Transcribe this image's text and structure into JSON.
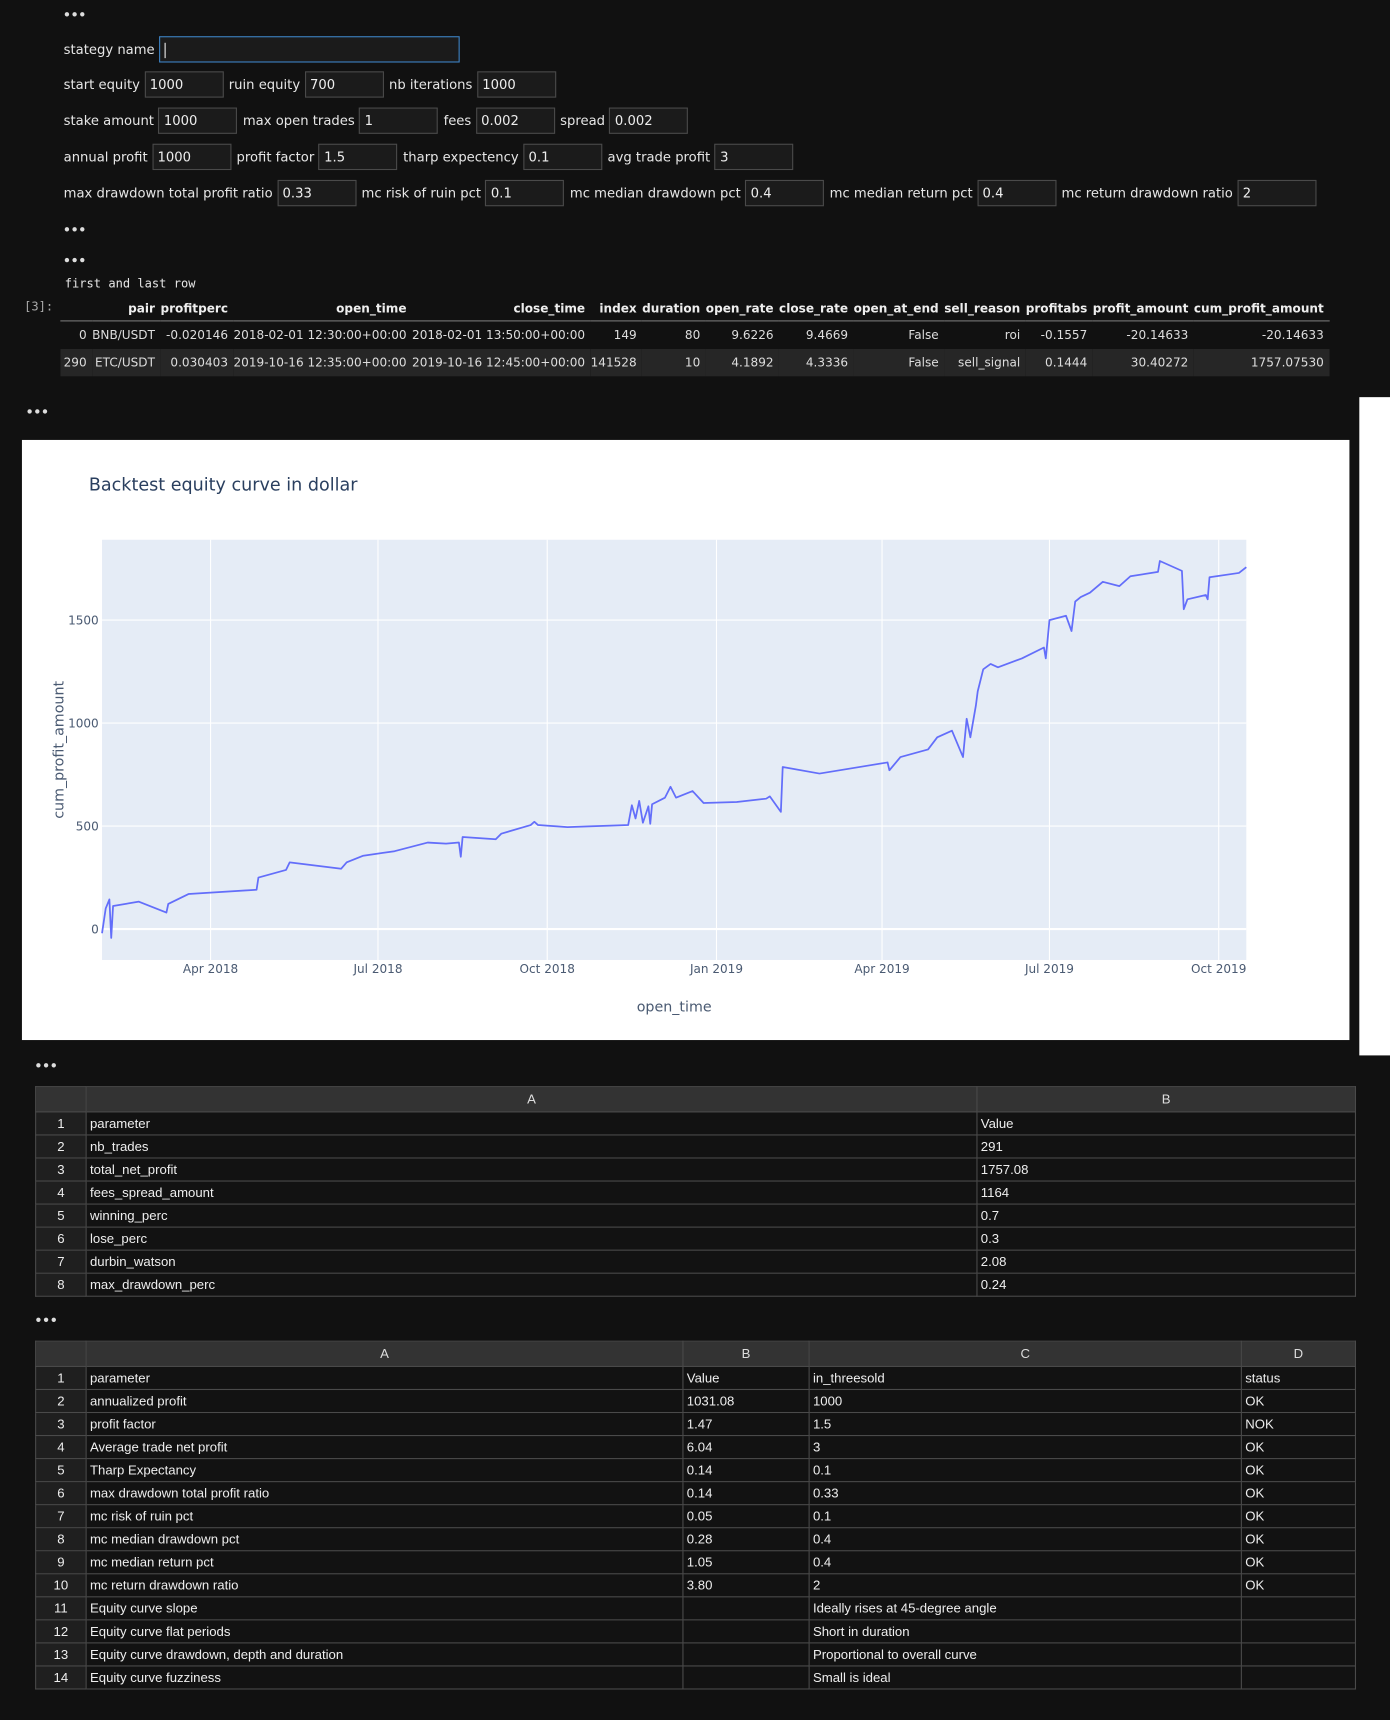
{
  "form": {
    "strategy_label": "stategy name",
    "rows": [
      [
        {
          "label": "start equity",
          "value": "1000"
        },
        {
          "label": "ruin equity",
          "value": "700"
        },
        {
          "label": "nb iterations",
          "value": "1000"
        }
      ],
      [
        {
          "label": "stake amount",
          "value": "1000"
        },
        {
          "label": "max open trades",
          "value": "1"
        },
        {
          "label": "fees",
          "value": "0.002"
        },
        {
          "label": "spread",
          "value": "0.002"
        }
      ],
      [
        {
          "label": "annual profit",
          "value": "1000"
        },
        {
          "label": "profit factor",
          "value": "1.5"
        },
        {
          "label": "tharp expectency",
          "value": "0.1"
        },
        {
          "label": "avg trade profit",
          "value": "3"
        }
      ],
      [
        {
          "label": "max drawdown total profit ratio",
          "value": "0.33"
        },
        {
          "label": "mc risk of ruin pct",
          "value": "0.1"
        },
        {
          "label": "mc median drawdown pct",
          "value": "0.4"
        },
        {
          "label": "mc median return pct",
          "value": "0.4"
        },
        {
          "label": "mc return drawdown ratio",
          "value": "2"
        }
      ]
    ]
  },
  "output": {
    "caption": "first and last row",
    "prompt": "[3]:",
    "dataframe": {
      "columns": [
        "pair",
        "profitperc",
        "open_time",
        "close_time",
        "index",
        "duration",
        "open_rate",
        "close_rate",
        "open_at_end",
        "sell_reason",
        "profitabs",
        "profit_amount",
        "cum_profit_amount"
      ],
      "rows": [
        [
          "0",
          "BNB/USDT",
          "-0.020146",
          "2018-02-01 12:30:00+00:00",
          "2018-02-01 13:50:00+00:00",
          "149",
          "80",
          "9.6226",
          "9.4669",
          "False",
          "roi",
          "-0.1557",
          "-20.14633",
          "-20.14633"
        ],
        [
          "290",
          "ETC/USDT",
          "0.030403",
          "2019-10-16 12:35:00+00:00",
          "2019-10-16 12:45:00+00:00",
          "141528",
          "10",
          "4.1892",
          "4.3336",
          "False",
          "sell_signal",
          "0.1444",
          "30.40272",
          "1757.07530"
        ]
      ]
    }
  },
  "chart_data": {
    "type": "line",
    "title": "Backtest equity curve in dollar",
    "x_label": "open_time",
    "y_label": "cum_profit_amount",
    "color": "#636efa",
    "grid": true,
    "x": [
      "2018-02-01",
      "2018-02-03",
      "2018-02-05",
      "2018-02-06",
      "2018-02-07",
      "2018-02-21",
      "2018-03-08",
      "2018-03-09",
      "2018-03-14",
      "2018-03-20",
      "2018-04-26",
      "2018-04-27",
      "2018-05-12",
      "2018-05-14",
      "2018-06-11",
      "2018-06-14",
      "2018-06-23",
      "2018-07-10",
      "2018-07-28",
      "2018-08-07",
      "2018-08-14",
      "2018-08-15",
      "2018-08-16",
      "2018-09-03",
      "2018-09-06",
      "2018-09-22",
      "2018-09-24",
      "2018-09-26",
      "2018-10-12",
      "2018-11-14",
      "2018-11-16",
      "2018-11-18",
      "2018-11-20",
      "2018-11-22",
      "2018-11-25",
      "2018-11-26",
      "2018-11-27",
      "2018-12-04",
      "2018-12-07",
      "2018-12-10",
      "2018-12-19",
      "2018-12-25",
      "2019-01-12",
      "2019-01-28",
      "2019-01-30",
      "2019-02-05",
      "2019-02-06",
      "2019-02-26",
      "2019-04-04",
      "2019-04-05",
      "2019-04-11",
      "2019-04-26",
      "2019-05-01",
      "2019-05-09",
      "2019-05-15",
      "2019-05-17",
      "2019-05-19",
      "2019-05-22",
      "2019-05-23",
      "2019-05-26",
      "2019-05-30",
      "2019-06-03",
      "2019-06-16",
      "2019-06-28",
      "2019-06-29",
      "2019-07-01",
      "2019-07-10",
      "2019-07-13",
      "2019-07-15",
      "2019-07-18",
      "2019-07-23",
      "2019-07-30",
      "2019-08-08",
      "2019-08-14",
      "2019-08-29",
      "2019-08-30",
      "2019-09-11",
      "2019-09-12",
      "2019-09-14",
      "2019-09-24",
      "2019-09-25",
      "2019-09-26",
      "2019-10-12",
      "2019-10-16"
    ],
    "values": [
      -20.15,
      100,
      144,
      -43,
      112,
      133,
      80,
      122,
      144,
      170,
      191,
      250,
      287,
      324,
      293,
      324,
      356,
      378,
      420,
      415,
      420,
      351,
      447,
      436,
      463,
      505,
      521,
      505,
      495,
      505,
      601,
      537,
      622,
      516,
      596,
      511,
      606,
      638,
      691,
      638,
      670,
      612,
      617,
      633,
      644,
      569,
      787,
      755,
      809,
      771,
      835,
      872,
      931,
      963,
      835,
      1021,
      931,
      1085,
      1154,
      1261,
      1287,
      1271,
      1314,
      1367,
      1314,
      1500,
      1521,
      1447,
      1590,
      1612,
      1633,
      1686,
      1665,
      1713,
      1734,
      1787,
      1739,
      1553,
      1601,
      1622,
      1601,
      1708,
      1729,
      1757.08
    ],
    "xlim": [
      "2018-02-01",
      "2019-10-16"
    ],
    "xticks": [
      {
        "value": "2018-04",
        "label": "Apr 2018"
      },
      {
        "value": "2018-07",
        "label": "Jul 2018"
      },
      {
        "value": "2018-10",
        "label": "Oct 2018"
      },
      {
        "value": "2019-01",
        "label": "Jan 2019"
      },
      {
        "value": "2019-04",
        "label": "Apr 2019"
      },
      {
        "value": "2019-07",
        "label": "Jul 2019"
      },
      {
        "value": "2019-10",
        "label": "Oct 2019"
      }
    ],
    "ylim": [
      -150,
      1890
    ],
    "yticks": [
      0,
      500,
      1000,
      1500
    ]
  },
  "table1": {
    "columns": [
      "A",
      "B"
    ],
    "rows": [
      [
        "1",
        "parameter",
        "Value"
      ],
      [
        "2",
        "nb_trades",
        "291"
      ],
      [
        "3",
        "total_net_profit",
        "1757.08"
      ],
      [
        "4",
        "fees_spread_amount",
        "1164"
      ],
      [
        "5",
        "winning_perc",
        "0.7"
      ],
      [
        "6",
        "lose_perc",
        "0.3"
      ],
      [
        "7",
        "durbin_watson",
        "2.08"
      ],
      [
        "8",
        "max_drawdown_perc",
        "0.24"
      ]
    ]
  },
  "table2": {
    "columns": [
      "A",
      "B",
      "C",
      "D"
    ],
    "rows": [
      [
        "1",
        "parameter",
        "Value",
        "in_threesold",
        "status"
      ],
      [
        "2",
        "annualized profit",
        "1031.08",
        "1000",
        "OK"
      ],
      [
        "3",
        "profit factor",
        "1.47",
        "1.5",
        "NOK"
      ],
      [
        "4",
        "Average trade net profit",
        "6.04",
        "3",
        "OK"
      ],
      [
        "5",
        "Tharp Expectancy",
        "0.14",
        "0.1",
        "OK"
      ],
      [
        "6",
        "max drawdown total profit ratio",
        "0.14",
        "0.33",
        "OK"
      ],
      [
        "7",
        "mc risk of ruin pct",
        "0.05",
        "0.1",
        "OK"
      ],
      [
        "8",
        "mc median drawdown pct",
        "0.28",
        "0.4",
        "OK"
      ],
      [
        "9",
        "mc median return pct",
        "1.05",
        "0.4",
        "OK"
      ],
      [
        "10",
        "mc return drawdown ratio",
        "3.80",
        "2",
        "OK"
      ],
      [
        "11",
        "Equity curve slope",
        null,
        "Ideally rises at 45-degree angle",
        null
      ],
      [
        "12",
        "Equity curve flat periods",
        null,
        "Short in duration",
        null
      ],
      [
        "13",
        "Equity curve drawdown, depth and duration",
        null,
        "Proportional to overall curve",
        null
      ],
      [
        "14",
        "Equity curve fuzziness",
        null,
        "Small is ideal",
        null
      ]
    ]
  }
}
